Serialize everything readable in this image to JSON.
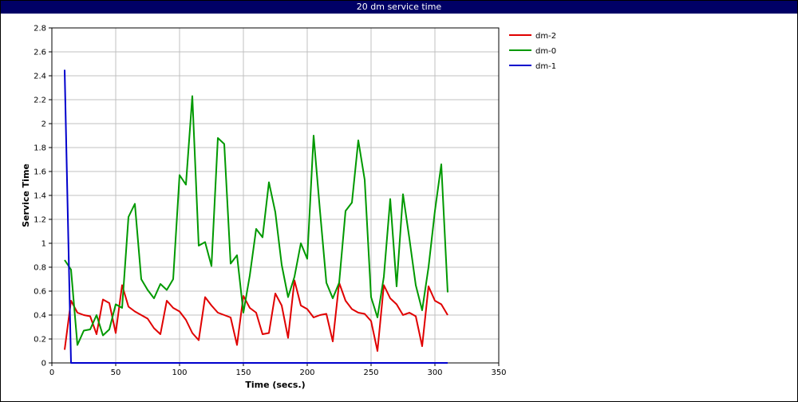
{
  "window": {
    "title": "20 dm service time"
  },
  "chart_data": {
    "type": "line",
    "title": "20 dm service time",
    "xlabel": "Time (secs.)",
    "ylabel": "Service Time",
    "xlim": [
      0,
      350
    ],
    "ylim": [
      0,
      2.8
    ],
    "xticks": [
      0,
      50,
      100,
      150,
      200,
      250,
      300,
      350
    ],
    "yticks": [
      0,
      0.2,
      0.4,
      0.6,
      0.8,
      1,
      1.2,
      1.4,
      1.6,
      1.8,
      2,
      2.2,
      2.4,
      2.6,
      2.8
    ],
    "grid": true,
    "legend_position": "right-top",
    "series": [
      {
        "name": "dm-2",
        "color": "#e00000",
        "x": [
          10,
          15,
          20,
          25,
          30,
          35,
          40,
          45,
          50,
          55,
          60,
          65,
          70,
          75,
          80,
          85,
          90,
          95,
          100,
          105,
          110,
          115,
          120,
          125,
          130,
          135,
          140,
          145,
          150,
          155,
          160,
          165,
          170,
          175,
          180,
          185,
          190,
          195,
          200,
          205,
          210,
          215,
          220,
          225,
          230,
          235,
          240,
          245,
          250,
          255,
          260,
          265,
          270,
          275,
          280,
          285,
          290,
          295,
          300,
          305,
          310
        ],
        "values": [
          0.11,
          0.52,
          0.42,
          0.4,
          0.39,
          0.24,
          0.53,
          0.5,
          0.25,
          0.65,
          0.47,
          0.43,
          0.4,
          0.37,
          0.29,
          0.24,
          0.52,
          0.46,
          0.43,
          0.36,
          0.25,
          0.19,
          0.55,
          0.48,
          0.42,
          0.4,
          0.38,
          0.15,
          0.56,
          0.46,
          0.42,
          0.24,
          0.25,
          0.58,
          0.48,
          0.21,
          0.69,
          0.48,
          0.45,
          0.38,
          0.4,
          0.41,
          0.18,
          0.67,
          0.52,
          0.45,
          0.42,
          0.41,
          0.35,
          0.1,
          0.65,
          0.54,
          0.49,
          0.4,
          0.42,
          0.39,
          0.14,
          0.64,
          0.52,
          0.49,
          0.4
        ]
      },
      {
        "name": "dm-0",
        "color": "#009900",
        "x": [
          10,
          15,
          20,
          25,
          30,
          35,
          40,
          45,
          50,
          55,
          60,
          65,
          70,
          75,
          80,
          85,
          90,
          95,
          100,
          105,
          110,
          115,
          120,
          125,
          130,
          135,
          140,
          145,
          150,
          155,
          160,
          165,
          170,
          175,
          180,
          185,
          190,
          195,
          200,
          205,
          210,
          215,
          220,
          225,
          230,
          235,
          240,
          245,
          250,
          255,
          260,
          265,
          270,
          275,
          280,
          285,
          290,
          295,
          300,
          305,
          310
        ],
        "values": [
          0.86,
          0.78,
          0.15,
          0.27,
          0.28,
          0.4,
          0.23,
          0.28,
          0.49,
          0.46,
          1.22,
          1.33,
          0.7,
          0.61,
          0.54,
          0.66,
          0.61,
          0.7,
          1.57,
          1.49,
          2.23,
          0.98,
          1.01,
          0.81,
          1.88,
          1.83,
          0.83,
          0.9,
          0.42,
          0.73,
          1.12,
          1.05,
          1.51,
          1.26,
          0.82,
          0.55,
          0.72,
          1.0,
          0.87,
          1.9,
          1.27,
          0.67,
          0.54,
          0.67,
          1.27,
          1.34,
          1.86,
          1.53,
          0.55,
          0.38,
          0.72,
          1.37,
          0.64,
          1.41,
          1.04,
          0.65,
          0.44,
          0.8,
          1.27,
          1.66,
          0.59
        ]
      },
      {
        "name": "dm-1",
        "color": "#0000cc",
        "x": [
          10,
          15,
          20,
          60,
          100,
          150,
          200,
          250,
          310
        ],
        "values": [
          2.45,
          0,
          0,
          0,
          0,
          0,
          0,
          0,
          0
        ]
      }
    ]
  }
}
